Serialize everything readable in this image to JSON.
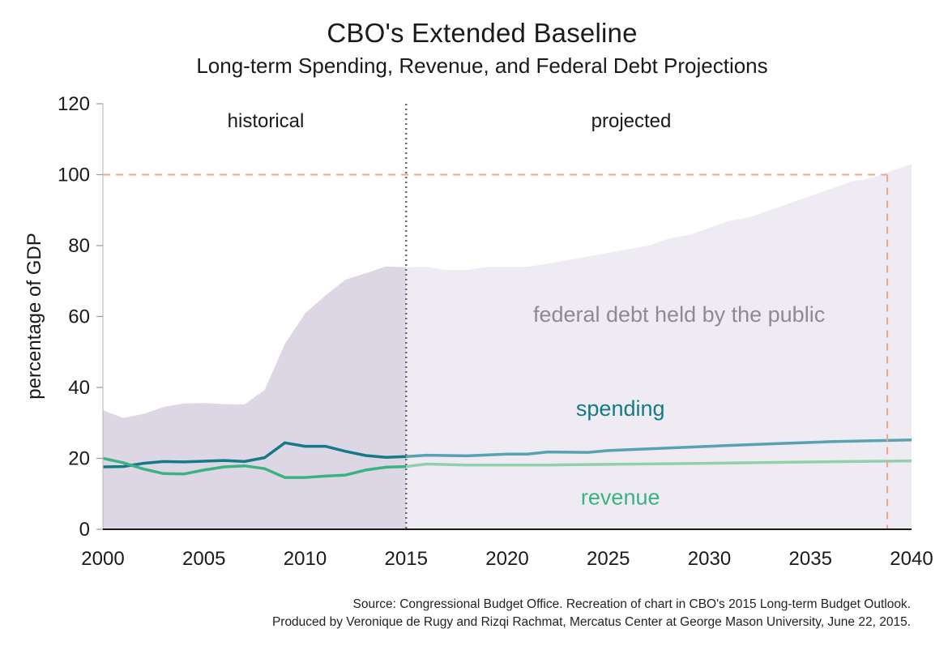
{
  "header": {
    "title": "CBO's Extended Baseline",
    "subtitle": "Long-term Spending, Revenue, and Federal Debt Projections"
  },
  "footer": {
    "source_line1": "Source: Congressional Budget Office. Recreation of chart in CBO's 2015 Long-term Budget Outlook.",
    "source_line2": "Produced by Veronique de Rugy and Rizqi Rachmat, Mercatus Center at George Mason University, June 22, 2015."
  },
  "chart_data": {
    "type": "line",
    "title": "CBO's Extended Baseline",
    "subtitle": "Long-term Spending, Revenue, and Federal Debt Projections",
    "xlabel": "",
    "ylabel": "percentage of GDP",
    "xlim": [
      2000,
      2040
    ],
    "ylim": [
      0,
      120
    ],
    "x_ticks": [
      2000,
      2005,
      2010,
      2015,
      2020,
      2025,
      2030,
      2035,
      2040
    ],
    "y_ticks": [
      0,
      20,
      40,
      60,
      80,
      100,
      120
    ],
    "grid": false,
    "legend": "none",
    "regions": [
      {
        "label": "historical",
        "from": 2000,
        "to": 2015
      },
      {
        "label": "projected",
        "from": 2015,
        "to": 2040
      }
    ],
    "divider_x": 2015,
    "reference_line": {
      "y": 100,
      "until_x": 2038.8
    },
    "series": [
      {
        "name": "federal debt held by the public",
        "kind": "area",
        "color_historical": "#ddd6e4",
        "color_projected": "#efebf2",
        "x": [
          2000,
          2001,
          2002,
          2003,
          2004,
          2005,
          2006,
          2007,
          2008,
          2009,
          2010,
          2011,
          2012,
          2013,
          2014,
          2015,
          2016,
          2017,
          2018,
          2019,
          2020,
          2021,
          2022,
          2023,
          2024,
          2025,
          2026,
          2027,
          2028,
          2029,
          2030,
          2031,
          2032,
          2033,
          2034,
          2035,
          2036,
          2037,
          2038,
          2039,
          2040
        ],
        "values": [
          33.6,
          31.4,
          32.5,
          34.5,
          35.5,
          35.6,
          35.3,
          35.2,
          39.3,
          52.3,
          60.9,
          65.9,
          70.4,
          72.2,
          74.1,
          73.9,
          74.0,
          73.1,
          73.1,
          74.0,
          74.0,
          74.0,
          74.9,
          75.9,
          76.9,
          78.0,
          79.0,
          80.0,
          82.0,
          83.0,
          85.0,
          87.0,
          88.0,
          90.0,
          92.0,
          94.0,
          96.0,
          98.0,
          99.0,
          101.0,
          103.0
        ]
      },
      {
        "name": "spending",
        "kind": "line",
        "color_historical": "#147a85",
        "color_projected": "#57a3b1",
        "x": [
          2000,
          2001,
          2002,
          2003,
          2004,
          2005,
          2006,
          2007,
          2008,
          2009,
          2010,
          2011,
          2012,
          2013,
          2014,
          2015,
          2016,
          2018,
          2020,
          2021,
          2022,
          2024,
          2025,
          2027,
          2030,
          2033,
          2036,
          2040
        ],
        "values": [
          17.6,
          17.7,
          18.6,
          19.1,
          19.0,
          19.2,
          19.4,
          19.1,
          20.2,
          24.4,
          23.4,
          23.4,
          22.0,
          20.8,
          20.3,
          20.5,
          20.9,
          20.7,
          21.2,
          21.2,
          21.8,
          21.7,
          22.2,
          22.7,
          23.4,
          24.1,
          24.7,
          25.2
        ]
      },
      {
        "name": "revenue",
        "kind": "line",
        "color_historical": "#3ab383",
        "color_projected": "#8fd0ad",
        "x": [
          2000,
          2001,
          2002,
          2003,
          2004,
          2005,
          2006,
          2007,
          2008,
          2009,
          2010,
          2011,
          2012,
          2013,
          2014,
          2015,
          2016,
          2018,
          2020,
          2022,
          2023,
          2025,
          2028,
          2031,
          2034,
          2037,
          2040
        ],
        "values": [
          20.0,
          18.8,
          17.0,
          15.7,
          15.6,
          16.7,
          17.6,
          17.9,
          17.1,
          14.6,
          14.6,
          15.0,
          15.3,
          16.7,
          17.5,
          17.7,
          18.4,
          18.1,
          18.1,
          18.1,
          18.2,
          18.3,
          18.5,
          18.7,
          18.9,
          19.1,
          19.3
        ]
      }
    ],
    "annotations": [
      {
        "text": "federal debt held by the public",
        "x": 2028.5,
        "y": 58.5,
        "color": "#8e8a93"
      },
      {
        "text": "spending",
        "x": 2025.6,
        "y": 32.0,
        "color": "#147a85"
      },
      {
        "text": "revenue",
        "x": 2025.6,
        "y": 7.0,
        "color": "#3ab383"
      }
    ],
    "colors": {
      "axis": "#1a1a1a",
      "divider": "#6b6b6b",
      "reference": "#f0a395"
    }
  }
}
